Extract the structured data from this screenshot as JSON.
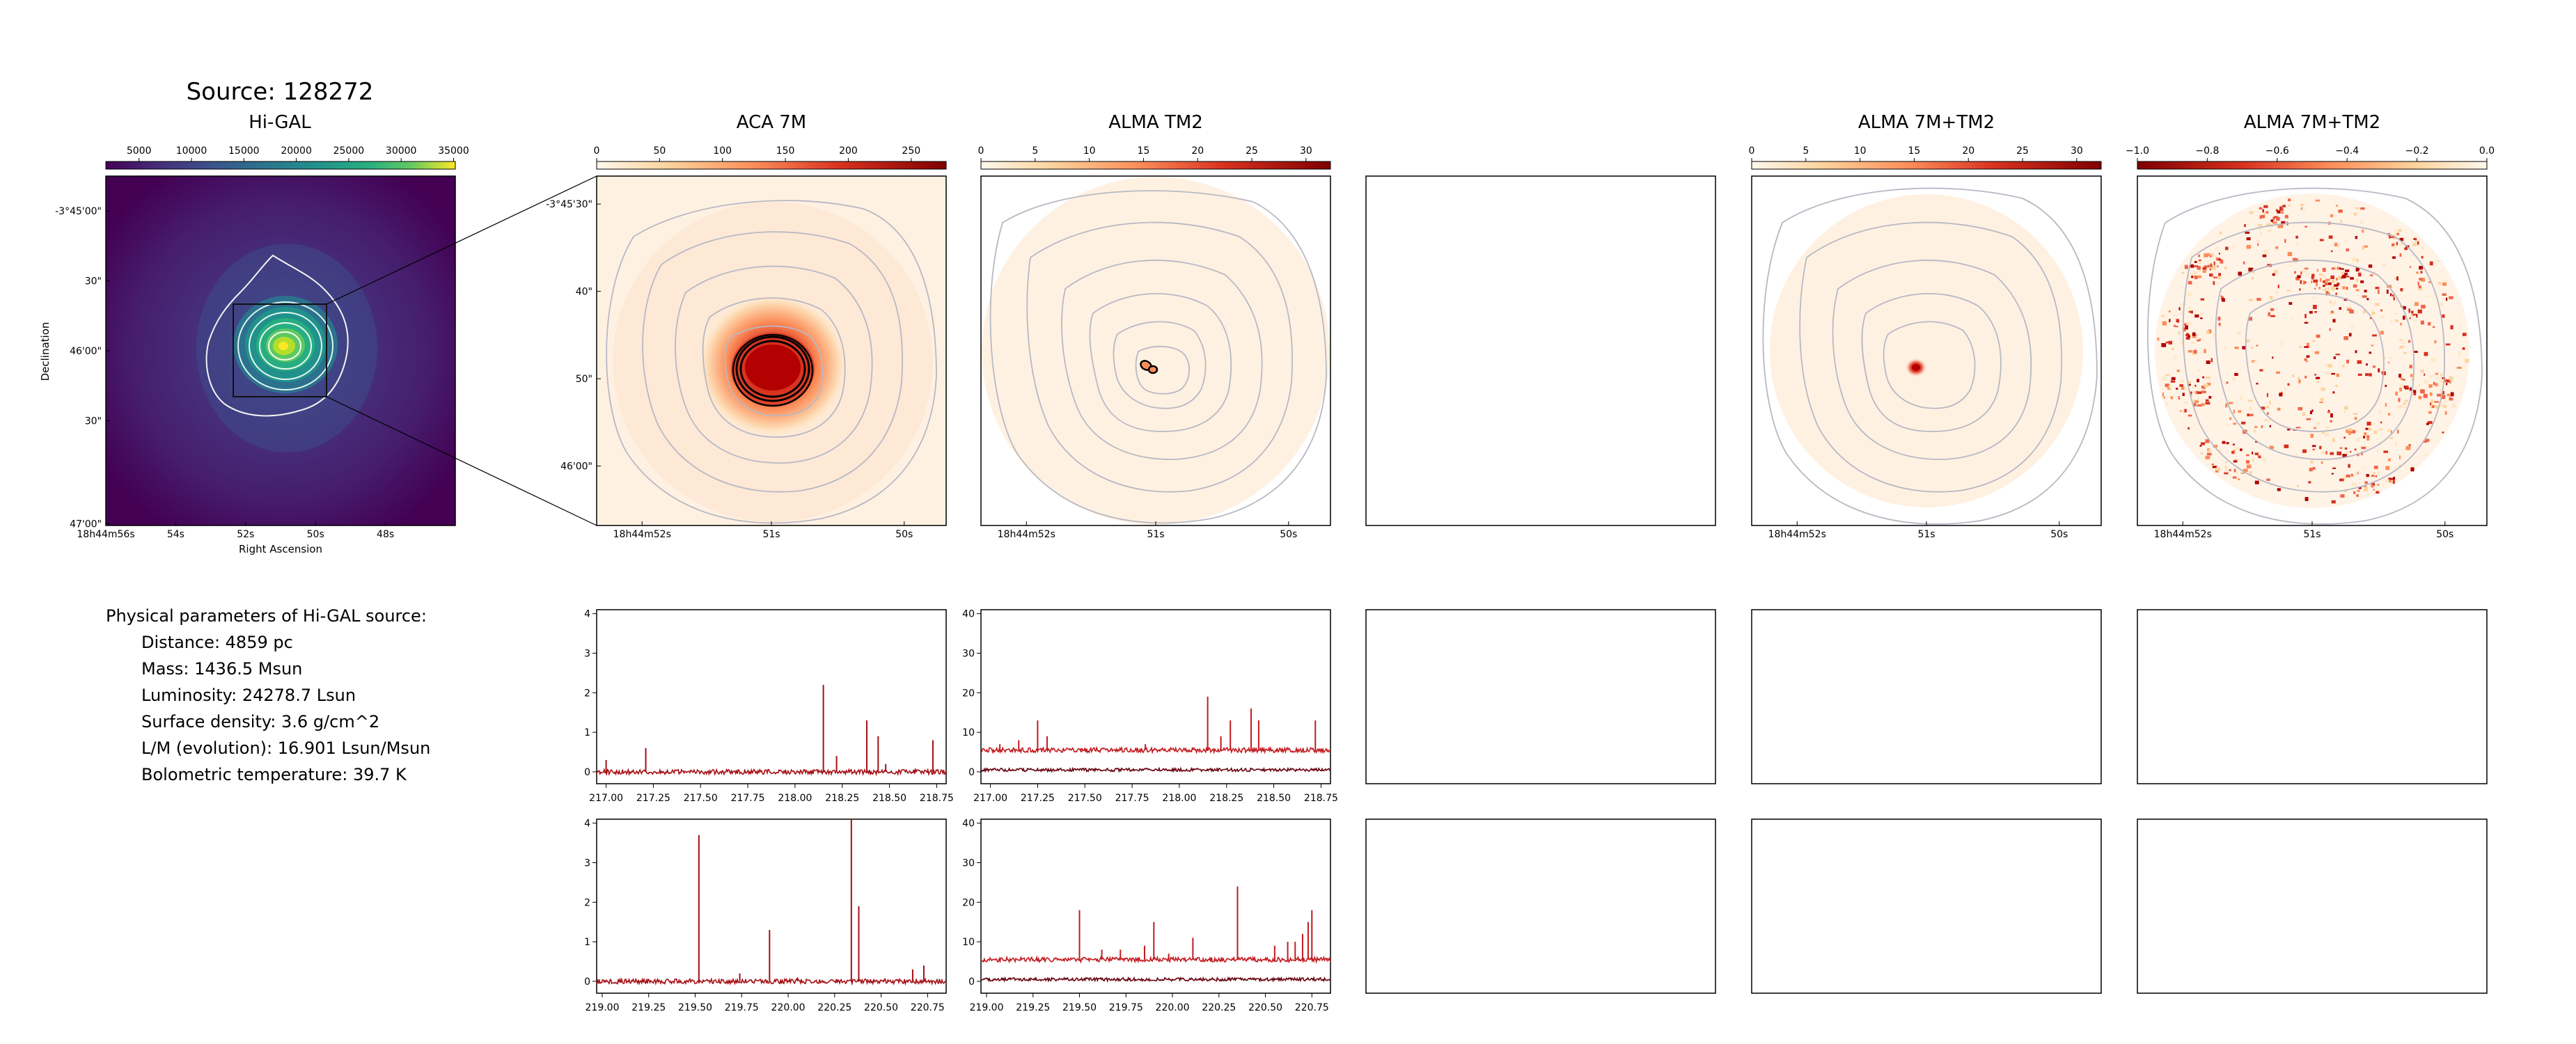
{
  "figure": {
    "source_title": "Source: 128272",
    "param_heading": "Physical parameters of Hi-GAL source:",
    "params": [
      "Distance: 4859 pc",
      "Mass: 1436.5 Msun",
      "Luminosity: 24278.7 Lsun",
      "Surface density: 3.6 g/cm^2",
      "L/M (evolution): 16.901 Lsun/Msun",
      "Bolometric temperature: 39.7 K"
    ]
  },
  "colors": {
    "accent_red": "#a50f15",
    "spectrum_dark": "#67000d",
    "contour_gray": "#b8b8c4",
    "viridis_dark": "#440154",
    "viridis_bright": "#fde725"
  },
  "chart_data": [
    {
      "type": "heatmap",
      "title": "Hi-GAL",
      "xlabel": "Right Ascension",
      "ylabel": "Declination",
      "colormap": "viridis",
      "colorbar_ticks": [
        "5000",
        "10000",
        "15000",
        "20000",
        "25000",
        "30000",
        "35000"
      ],
      "x_ticks": [
        "18h44m56s",
        "54s",
        "52s",
        "50s",
        "48s"
      ],
      "y_ticks": [
        "-3°45'00\"",
        "30\"",
        "46'00\"",
        "30\"",
        "47'00\""
      ]
    },
    {
      "type": "heatmap",
      "title": "ACA 7M",
      "colormap": "OrRd",
      "colorbar_ticks": [
        "0",
        "50",
        "100",
        "150",
        "200",
        "250"
      ],
      "x_ticks": [
        "18h44m52s",
        "51s",
        "50s"
      ],
      "y_ticks": [
        "-3°45'30\"",
        "40\"",
        "50\"",
        "46'00\""
      ]
    },
    {
      "type": "heatmap",
      "title": "ALMA TM2",
      "colormap": "OrRd",
      "colorbar_ticks": [
        "0",
        "5",
        "10",
        "15",
        "20",
        "25",
        "30"
      ],
      "x_ticks": [
        "18h44m52s",
        "51s",
        "50s"
      ]
    },
    {
      "type": "heatmap",
      "title": "ALMA 7M+TM2",
      "colormap": "OrRd",
      "colorbar_ticks": [
        "0",
        "5",
        "10",
        "15",
        "20",
        "25",
        "30"
      ],
      "x_ticks": [
        "18h44m52s",
        "51s",
        "50s"
      ]
    },
    {
      "type": "heatmap",
      "title": "ALMA 7M+TM2",
      "colormap": "OrRd_r",
      "colorbar_ticks": [
        "−1.0",
        "−0.8",
        "−0.6",
        "−0.4",
        "−0.2",
        "0.0"
      ],
      "x_ticks": [
        "18h44m52s",
        "51s",
        "50s"
      ]
    },
    {
      "type": "line",
      "title": "",
      "x_ticks": [
        "217.00",
        "217.25",
        "217.50",
        "217.75",
        "218.00",
        "218.25",
        "218.50",
        "218.75"
      ],
      "y_ticks": [
        "0",
        "1",
        "2",
        "3",
        "4"
      ],
      "xlim": [
        216.95,
        218.8
      ],
      "ylim": [
        -0.3,
        4.1
      ],
      "series": [
        {
          "x": [
            217.0,
            217.21,
            218.15,
            218.22,
            218.38,
            218.44,
            218.48,
            218.73
          ],
          "y": [
            0.3,
            0.6,
            2.2,
            0.4,
            1.3,
            0.9,
            0.2,
            0.8
          ]
        }
      ]
    },
    {
      "type": "line",
      "title": "",
      "x_ticks": [
        "217.00",
        "217.25",
        "217.50",
        "217.75",
        "218.00",
        "218.25",
        "218.50",
        "218.75"
      ],
      "y_ticks": [
        "0",
        "10",
        "20",
        "30",
        "40"
      ],
      "xlim": [
        216.95,
        218.8
      ],
      "ylim": [
        -3,
        41
      ],
      "series": [
        {
          "x": [
            217.05,
            217.15,
            217.25,
            217.3,
            217.48,
            217.82,
            218.15,
            218.22,
            218.27,
            218.38,
            218.42,
            218.72
          ],
          "y": [
            7,
            8,
            13,
            9,
            6,
            7,
            19,
            9,
            13,
            16,
            13,
            13
          ]
        },
        {
          "x": [
            217.25,
            218.2
          ],
          "y": [
            1,
            1
          ]
        }
      ]
    },
    {
      "type": "line",
      "title": "",
      "x_ticks": [
        "219.00",
        "219.25",
        "219.50",
        "219.75",
        "220.00",
        "220.25",
        "220.50",
        "220.75"
      ],
      "y_ticks": [
        "0",
        "1",
        "2",
        "3",
        "4"
      ],
      "xlim": [
        218.97,
        220.85
      ],
      "ylim": [
        -0.3,
        4.1
      ],
      "series": [
        {
          "x": [
            219.52,
            219.74,
            219.9,
            220.05,
            220.34,
            220.38,
            220.67,
            220.73
          ],
          "y": [
            3.7,
            0.2,
            1.3,
            0.1,
            4.1,
            1.9,
            0.3,
            0.4
          ]
        }
      ]
    },
    {
      "type": "line",
      "title": "",
      "x_ticks": [
        "219.00",
        "219.25",
        "219.50",
        "219.75",
        "220.00",
        "220.25",
        "220.50",
        "220.75"
      ],
      "y_ticks": [
        "0",
        "10",
        "20",
        "30",
        "40"
      ],
      "xlim": [
        218.97,
        220.85
      ],
      "ylim": [
        -3,
        41
      ],
      "series": [
        {
          "x": [
            219.5,
            219.62,
            219.72,
            219.85,
            219.9,
            219.98,
            220.11,
            220.35,
            220.55,
            220.62,
            220.66,
            220.7,
            220.73,
            220.75
          ],
          "y": [
            18,
            8,
            8,
            9,
            15,
            7,
            11,
            24,
            9,
            10,
            10,
            12,
            15,
            18
          ]
        }
      ]
    }
  ]
}
